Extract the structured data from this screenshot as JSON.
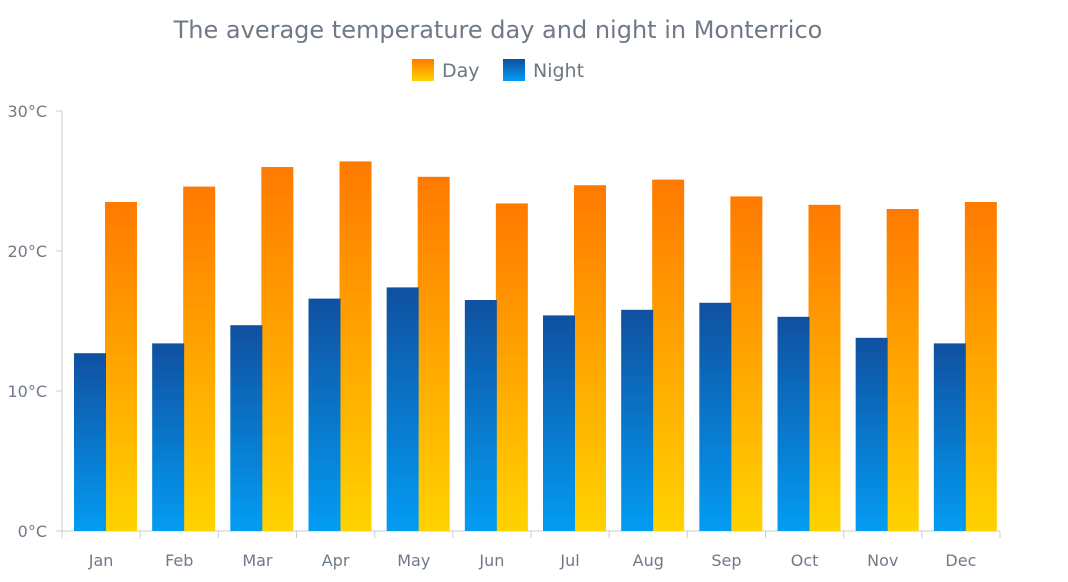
{
  "chart_data": {
    "type": "bar",
    "title": "The average temperature day and night in Monterrico",
    "xlabel": "",
    "ylabel": "",
    "categories": [
      "Jan",
      "Feb",
      "Mar",
      "Apr",
      "May",
      "Jun",
      "Jul",
      "Aug",
      "Sep",
      "Oct",
      "Nov",
      "Dec"
    ],
    "series": [
      {
        "name": "Night",
        "values": [
          12.7,
          13.4,
          14.7,
          16.6,
          17.4,
          16.5,
          15.4,
          15.8,
          16.3,
          15.3,
          13.8,
          13.4
        ],
        "color_top": "#1050a0",
        "color_bottom": "#039cf3"
      },
      {
        "name": "Day",
        "values": [
          23.5,
          24.6,
          26.0,
          26.4,
          25.3,
          23.4,
          24.7,
          25.1,
          23.9,
          23.3,
          23.0,
          23.5
        ],
        "color_top": "#ff7a00",
        "color_bottom": "#ffd200"
      }
    ],
    "ylim": [
      0,
      30
    ],
    "yticks": [
      0,
      10,
      20,
      30
    ],
    "ytick_labels": [
      "0°C",
      "10°C",
      "20°C",
      "30°C"
    ],
    "grid": false,
    "legend_position": "top-center"
  }
}
